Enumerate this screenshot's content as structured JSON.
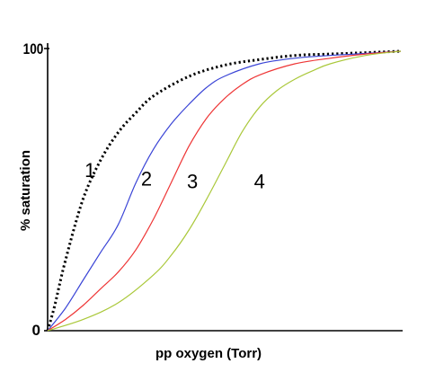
{
  "chart_data": {
    "type": "line",
    "xlabel": "pp oxygen (Torr)",
    "ylabel": "% saturation",
    "ylim": [
      0,
      100
    ],
    "yticks": [
      "0",
      "100"
    ],
    "grid": false,
    "legend": "none",
    "series": [
      {
        "name": "1",
        "color": "#000000",
        "style": "dotted",
        "x": [
          0,
          0.02,
          0.05,
          0.1,
          0.15,
          0.2,
          0.25,
          0.3,
          0.4,
          0.5,
          0.6,
          0.7,
          0.8,
          0.9,
          1.0
        ],
        "y": [
          0,
          9,
          25,
          47,
          61,
          71,
          78,
          84,
          91,
          95,
          97,
          98.5,
          99,
          99.5,
          100
        ]
      },
      {
        "name": "2",
        "color": "#3a44d6",
        "style": "solid",
        "x": [
          0,
          0.05,
          0.1,
          0.15,
          0.2,
          0.25,
          0.3,
          0.35,
          0.4,
          0.45,
          0.5,
          0.6,
          0.7,
          0.8,
          0.9,
          1.0
        ],
        "y": [
          0,
          8,
          18,
          28,
          38,
          53,
          65,
          74,
          81,
          87,
          91,
          95.5,
          97.5,
          98.5,
          99.2,
          100
        ]
      },
      {
        "name": "3",
        "color": "#ee3535",
        "style": "solid",
        "x": [
          0,
          0.05,
          0.1,
          0.15,
          0.2,
          0.25,
          0.3,
          0.35,
          0.4,
          0.45,
          0.5,
          0.55,
          0.6,
          0.7,
          0.8,
          0.9,
          1.0
        ],
        "y": [
          0,
          4,
          9,
          15,
          21,
          29,
          40,
          53,
          66,
          76,
          83,
          88,
          91.5,
          95.5,
          97.5,
          99,
          100
        ]
      },
      {
        "name": "4",
        "color": "#aac83a",
        "style": "solid",
        "x": [
          0,
          0.1,
          0.2,
          0.3,
          0.35,
          0.4,
          0.45,
          0.5,
          0.55,
          0.6,
          0.65,
          0.7,
          0.75,
          0.8,
          0.9,
          1.0
        ],
        "y": [
          0,
          4,
          10,
          20,
          27,
          36,
          47,
          59,
          71,
          80,
          86,
          90,
          93,
          95.5,
          98.5,
          100
        ]
      }
    ],
    "curve_labels": [
      {
        "text": "1",
        "x": 0.12,
        "y": 55
      },
      {
        "text": "2",
        "x": 0.28,
        "y": 52
      },
      {
        "text": "3",
        "x": 0.41,
        "y": 51
      },
      {
        "text": "4",
        "x": 0.6,
        "y": 51
      }
    ]
  }
}
